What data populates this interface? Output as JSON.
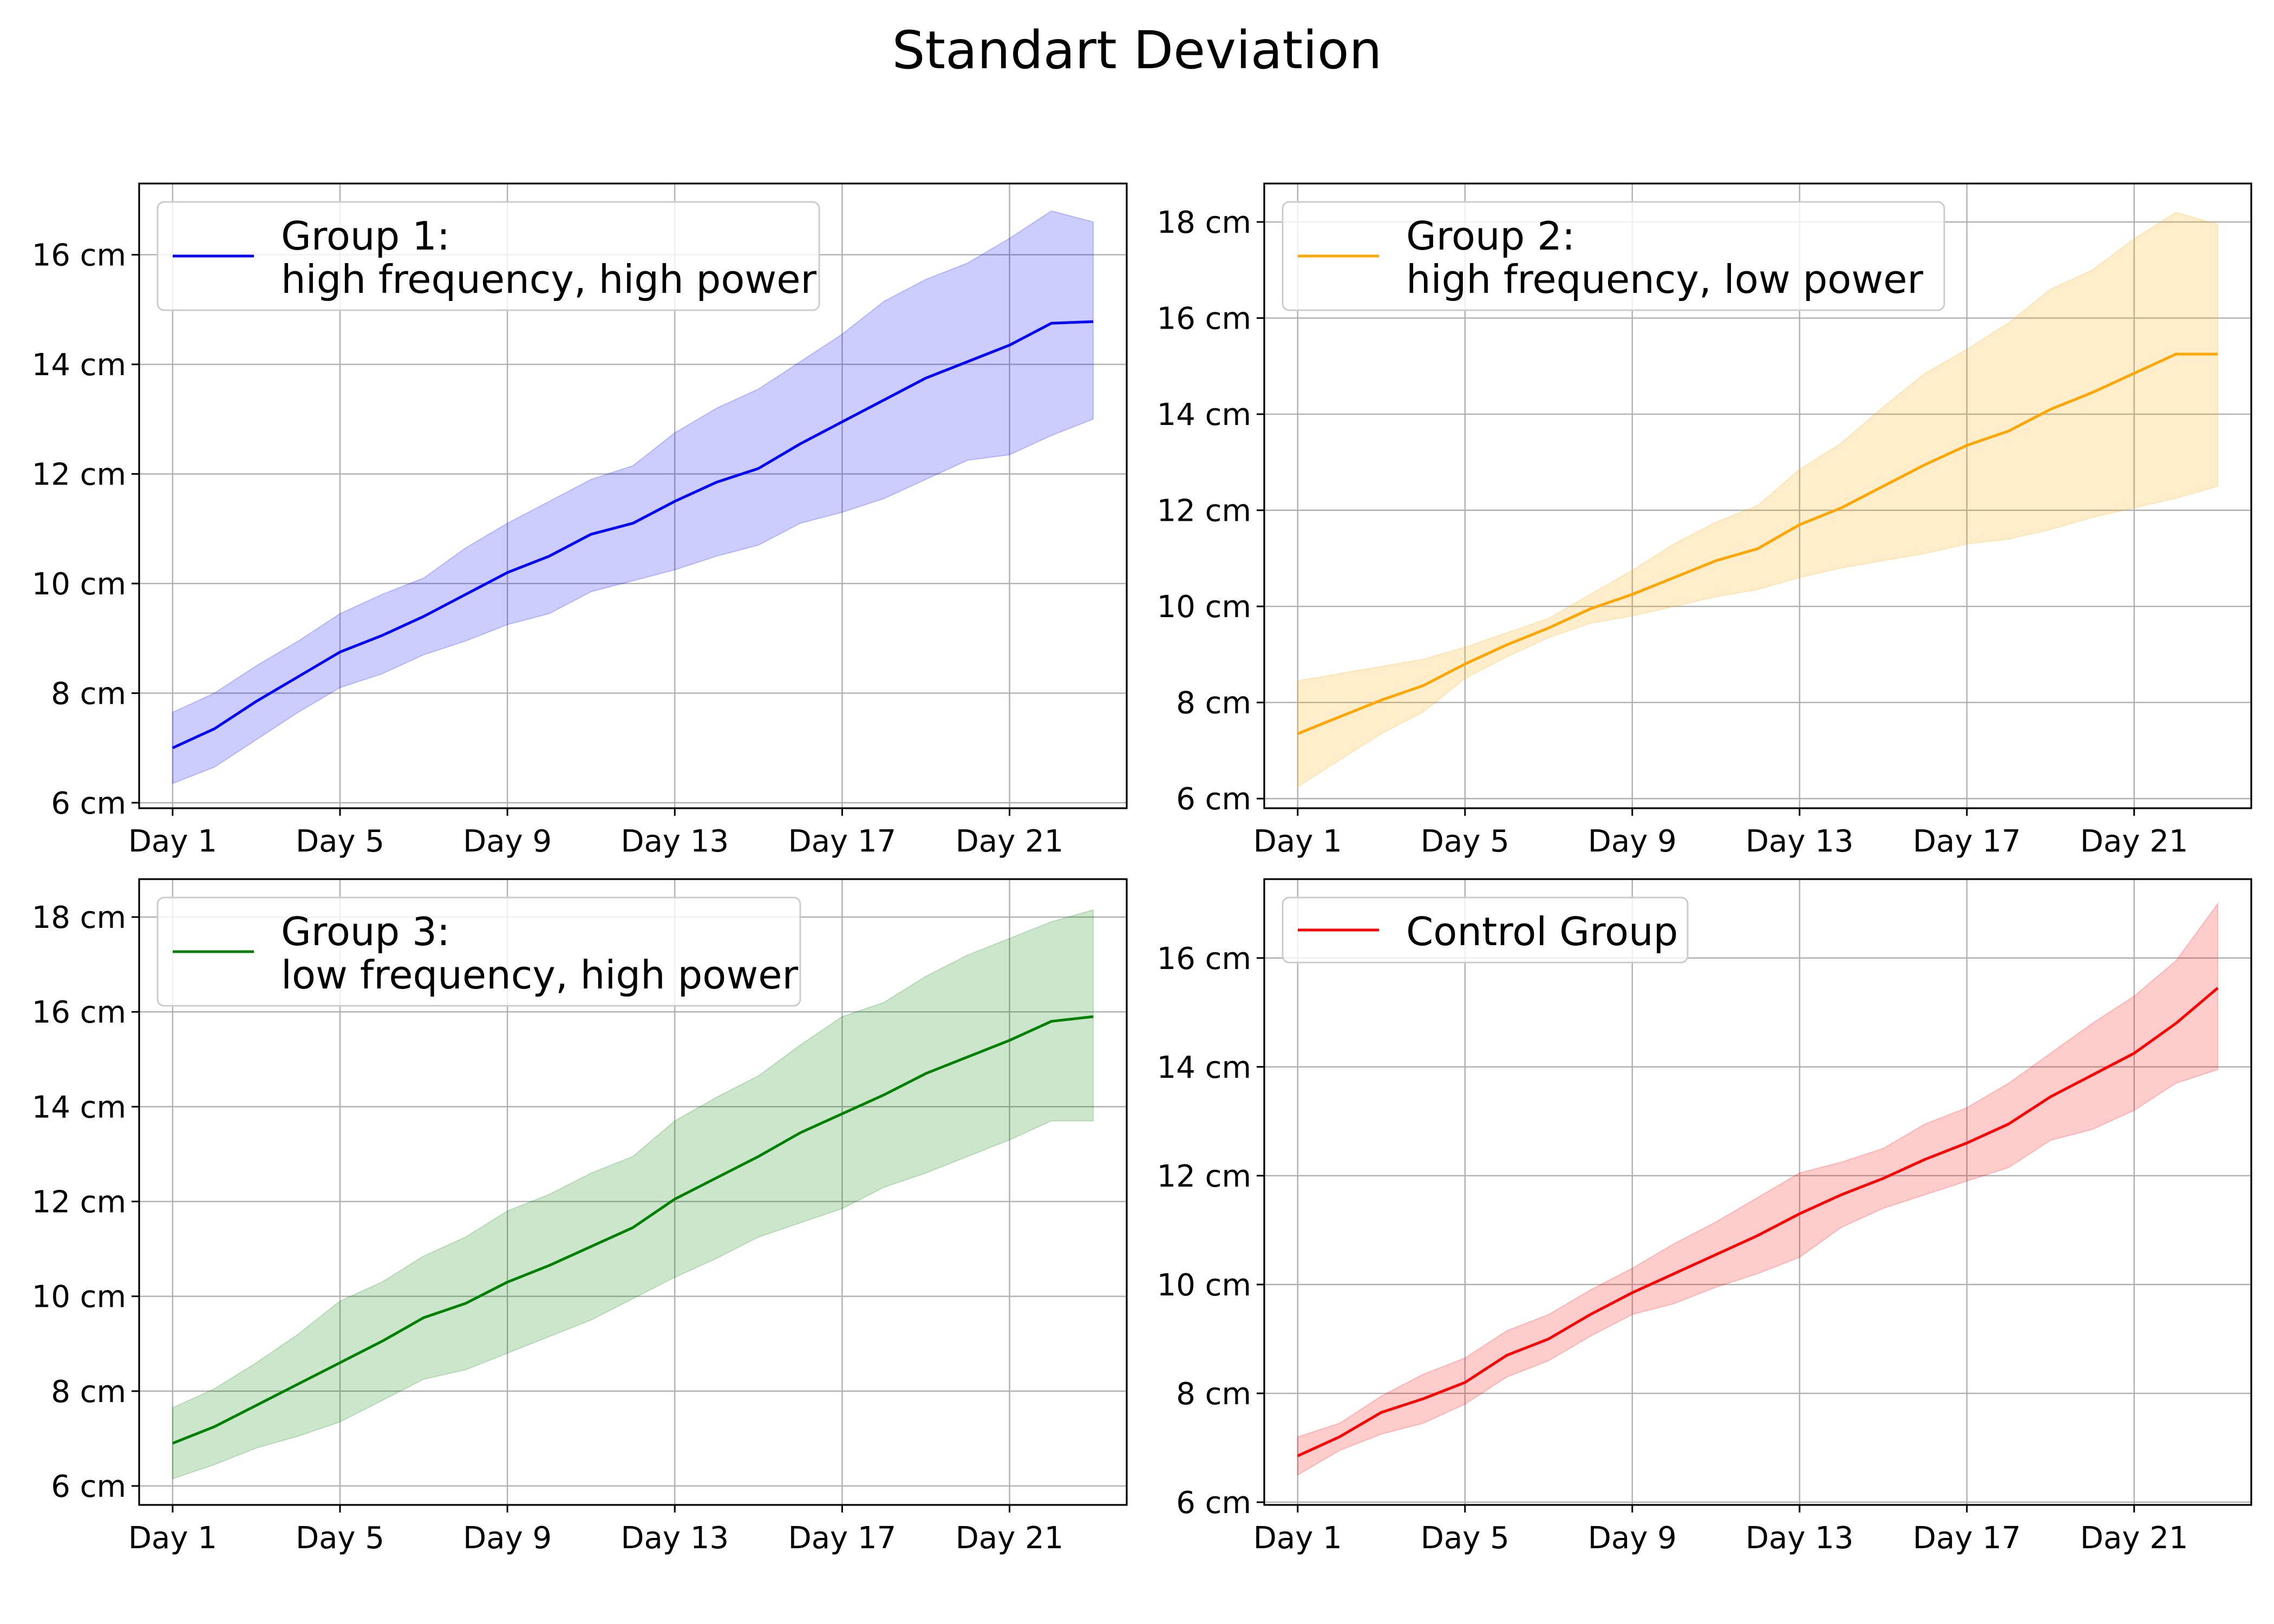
{
  "figure": {
    "title": "Standart Deviation"
  },
  "x_tick_labels": [
    "Day 1",
    "Day 5",
    "Day 9",
    "Day 13",
    "Day 17",
    "Day 21"
  ],
  "chart_data": [
    {
      "type": "line",
      "legend": [
        "Group 1:",
        "high frequency, high power"
      ],
      "legend_placement": "upper-left",
      "color": "#0000ff",
      "band_color": "#0000ff",
      "grid": true,
      "x_days": [
        1,
        2,
        3,
        4,
        5,
        6,
        7,
        8,
        9,
        10,
        11,
        12,
        13,
        14,
        15,
        16,
        17,
        18,
        19,
        20,
        21,
        22,
        23
      ],
      "x_tick_values": [
        1,
        5,
        9,
        13,
        17,
        21
      ],
      "xlim": [
        0.2,
        23.8
      ],
      "ylim": [
        5.9,
        17.3
      ],
      "y_ticks": [
        6,
        8,
        10,
        12,
        14,
        16
      ],
      "y_unit": "cm",
      "mean": [
        7.0,
        7.35,
        7.85,
        8.3,
        8.75,
        9.05,
        9.4,
        9.8,
        10.2,
        10.5,
        10.9,
        11.1,
        11.5,
        11.85,
        12.1,
        12.55,
        12.95,
        13.35,
        13.75,
        14.05,
        14.35,
        14.75,
        14.78
      ],
      "upper": [
        7.65,
        8.0,
        8.5,
        8.95,
        9.45,
        9.8,
        10.1,
        10.65,
        11.1,
        11.5,
        11.9,
        12.15,
        12.75,
        13.2,
        13.55,
        14.05,
        14.55,
        15.15,
        15.55,
        15.85,
        16.3,
        16.8,
        16.6
      ],
      "lower": [
        6.35,
        6.65,
        7.15,
        7.65,
        8.1,
        8.35,
        8.7,
        8.95,
        9.25,
        9.45,
        9.85,
        10.05,
        10.25,
        10.5,
        10.7,
        11.1,
        11.3,
        11.55,
        11.9,
        12.25,
        12.35,
        12.7,
        13.0
      ]
    },
    {
      "type": "line",
      "legend": [
        "Group 2:",
        "high frequency, low power"
      ],
      "legend_placement": "upper-left",
      "color": "#ffa500",
      "band_color": "#ffa500",
      "grid": true,
      "x_days": [
        1,
        2,
        3,
        4,
        5,
        6,
        7,
        8,
        9,
        10,
        11,
        12,
        13,
        14,
        15,
        16,
        17,
        18,
        19,
        20,
        21,
        22,
        23
      ],
      "x_tick_values": [
        1,
        5,
        9,
        13,
        17,
        21
      ],
      "xlim": [
        0.2,
        23.8
      ],
      "ylim": [
        5.8,
        18.8
      ],
      "y_ticks": [
        6,
        8,
        10,
        12,
        14,
        16,
        18
      ],
      "y_unit": "cm",
      "mean": [
        7.35,
        7.7,
        8.05,
        8.35,
        8.8,
        9.2,
        9.55,
        9.95,
        10.25,
        10.6,
        10.95,
        11.2,
        11.7,
        12.05,
        12.5,
        12.95,
        13.35,
        13.65,
        14.1,
        14.45,
        14.85,
        15.25,
        15.25
      ],
      "upper": [
        8.45,
        8.6,
        8.75,
        8.9,
        9.15,
        9.45,
        9.75,
        10.25,
        10.75,
        11.3,
        11.75,
        12.1,
        12.85,
        13.4,
        14.15,
        14.85,
        15.35,
        15.9,
        16.6,
        17.0,
        17.65,
        18.2,
        17.95
      ],
      "lower": [
        6.25,
        6.8,
        7.35,
        7.8,
        8.5,
        8.95,
        9.35,
        9.65,
        9.8,
        10.0,
        10.2,
        10.35,
        10.6,
        10.8,
        10.95,
        11.1,
        11.3,
        11.4,
        11.6,
        11.85,
        12.05,
        12.25,
        12.5
      ]
    },
    {
      "type": "line",
      "legend": [
        "Group 3:",
        "low frequency, high power"
      ],
      "legend_placement": "upper-left",
      "color": "#008000",
      "band_color": "#008000",
      "grid": true,
      "x_days": [
        1,
        2,
        3,
        4,
        5,
        6,
        7,
        8,
        9,
        10,
        11,
        12,
        13,
        14,
        15,
        16,
        17,
        18,
        19,
        20,
        21,
        22,
        23
      ],
      "x_tick_values": [
        1,
        5,
        9,
        13,
        17,
        21
      ],
      "xlim": [
        0.2,
        23.8
      ],
      "ylim": [
        5.6,
        18.8
      ],
      "y_ticks": [
        6,
        8,
        10,
        12,
        14,
        16,
        18
      ],
      "y_unit": "cm",
      "mean": [
        6.9,
        7.25,
        7.7,
        8.15,
        8.6,
        9.05,
        9.55,
        9.85,
        10.3,
        10.65,
        11.05,
        11.45,
        12.05,
        12.5,
        12.95,
        13.45,
        13.85,
        14.25,
        14.7,
        15.05,
        15.4,
        15.8,
        15.9
      ],
      "upper": [
        7.65,
        8.05,
        8.6,
        9.2,
        9.9,
        10.3,
        10.85,
        11.25,
        11.8,
        12.15,
        12.6,
        12.95,
        13.7,
        14.2,
        14.65,
        15.3,
        15.9,
        16.2,
        16.75,
        17.2,
        17.55,
        17.9,
        18.15
      ],
      "lower": [
        6.15,
        6.45,
        6.8,
        7.05,
        7.35,
        7.8,
        8.25,
        8.45,
        8.8,
        9.15,
        9.5,
        9.95,
        10.4,
        10.8,
        11.25,
        11.55,
        11.85,
        12.3,
        12.6,
        12.95,
        13.3,
        13.7,
        13.7
      ]
    },
    {
      "type": "line",
      "legend": [
        "Control Group"
      ],
      "legend_placement": "upper-left",
      "color": "#ff0000",
      "band_color": "#ff0000",
      "grid": true,
      "x_days": [
        1,
        2,
        3,
        4,
        5,
        6,
        7,
        8,
        9,
        10,
        11,
        12,
        13,
        14,
        15,
        16,
        17,
        18,
        19,
        20,
        21,
        22,
        23
      ],
      "x_tick_values": [
        1,
        5,
        9,
        13,
        17,
        21
      ],
      "xlim": [
        0.2,
        23.8
      ],
      "ylim": [
        5.95,
        17.45
      ],
      "y_ticks": [
        6,
        8,
        10,
        12,
        14,
        16
      ],
      "y_unit": "cm",
      "mean": [
        6.85,
        7.2,
        7.65,
        7.9,
        8.2,
        8.7,
        9.0,
        9.45,
        9.85,
        10.2,
        10.55,
        10.9,
        11.3,
        11.65,
        11.95,
        12.3,
        12.6,
        12.95,
        13.45,
        13.85,
        14.25,
        14.8,
        15.45
      ],
      "upper": [
        7.2,
        7.45,
        7.95,
        8.35,
        8.65,
        9.15,
        9.45,
        9.9,
        10.3,
        10.75,
        11.15,
        11.6,
        12.05,
        12.25,
        12.5,
        12.95,
        13.25,
        13.7,
        14.25,
        14.8,
        15.3,
        15.95,
        17.0
      ],
      "lower": [
        6.5,
        6.95,
        7.25,
        7.45,
        7.8,
        8.3,
        8.6,
        9.05,
        9.45,
        9.65,
        9.95,
        10.2,
        10.5,
        11.05,
        11.4,
        11.65,
        11.9,
        12.15,
        12.65,
        12.85,
        13.2,
        13.7,
        13.95
      ]
    }
  ]
}
